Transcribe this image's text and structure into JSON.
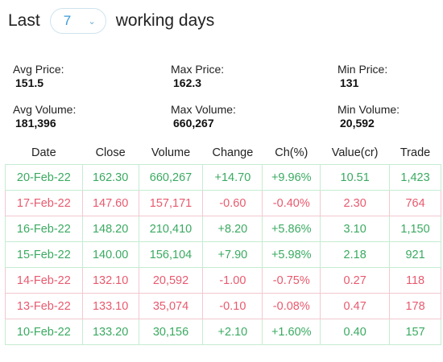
{
  "header": {
    "prefix": "Last",
    "selected_days": "7",
    "suffix": "working days"
  },
  "stats": {
    "avg_price": {
      "label": "Avg Price:",
      "value": "151.5"
    },
    "max_price": {
      "label": "Max Price:",
      "value": "162.3"
    },
    "min_price": {
      "label": "Min Price:",
      "value": "131"
    },
    "avg_volume": {
      "label": "Avg Volume:",
      "value": "181,396"
    },
    "max_volume": {
      "label": "Max Volume:",
      "value": "660,267"
    },
    "min_volume": {
      "label": "Min Volume:",
      "value": "20,592"
    }
  },
  "table": {
    "columns": [
      "Date",
      "Close",
      "Volume",
      "Change",
      "Ch(%)",
      "Value(cr)",
      "Trade"
    ],
    "rows": [
      {
        "direction": "up",
        "cells": [
          "20-Feb-22",
          "162.30",
          "660,267",
          "+14.70",
          "+9.96%",
          "10.51",
          "1,423"
        ]
      },
      {
        "direction": "down",
        "cells": [
          "17-Feb-22",
          "147.60",
          "157,171",
          "-0.60",
          "-0.40%",
          "2.30",
          "764"
        ]
      },
      {
        "direction": "up",
        "cells": [
          "16-Feb-22",
          "148.20",
          "210,410",
          "+8.20",
          "+5.86%",
          "3.10",
          "1,150"
        ]
      },
      {
        "direction": "up",
        "cells": [
          "15-Feb-22",
          "140.00",
          "156,104",
          "+7.90",
          "+5.98%",
          "2.18",
          "921"
        ]
      },
      {
        "direction": "down",
        "cells": [
          "14-Feb-22",
          "132.10",
          "20,592",
          "-1.00",
          "-0.75%",
          "0.27",
          "118"
        ]
      },
      {
        "direction": "down",
        "cells": [
          "13-Feb-22",
          "133.10",
          "35,074",
          "-0.10",
          "-0.08%",
          "0.47",
          "178"
        ]
      },
      {
        "direction": "up",
        "cells": [
          "10-Feb-22",
          "133.20",
          "30,156",
          "+2.10",
          "+1.60%",
          "0.40",
          "157"
        ]
      }
    ]
  },
  "colors": {
    "up": "#3aaa61",
    "down": "#e85a6e",
    "accent": "#3a9bd5"
  },
  "icons": {
    "select_chevron": "chevron-down-icon"
  }
}
